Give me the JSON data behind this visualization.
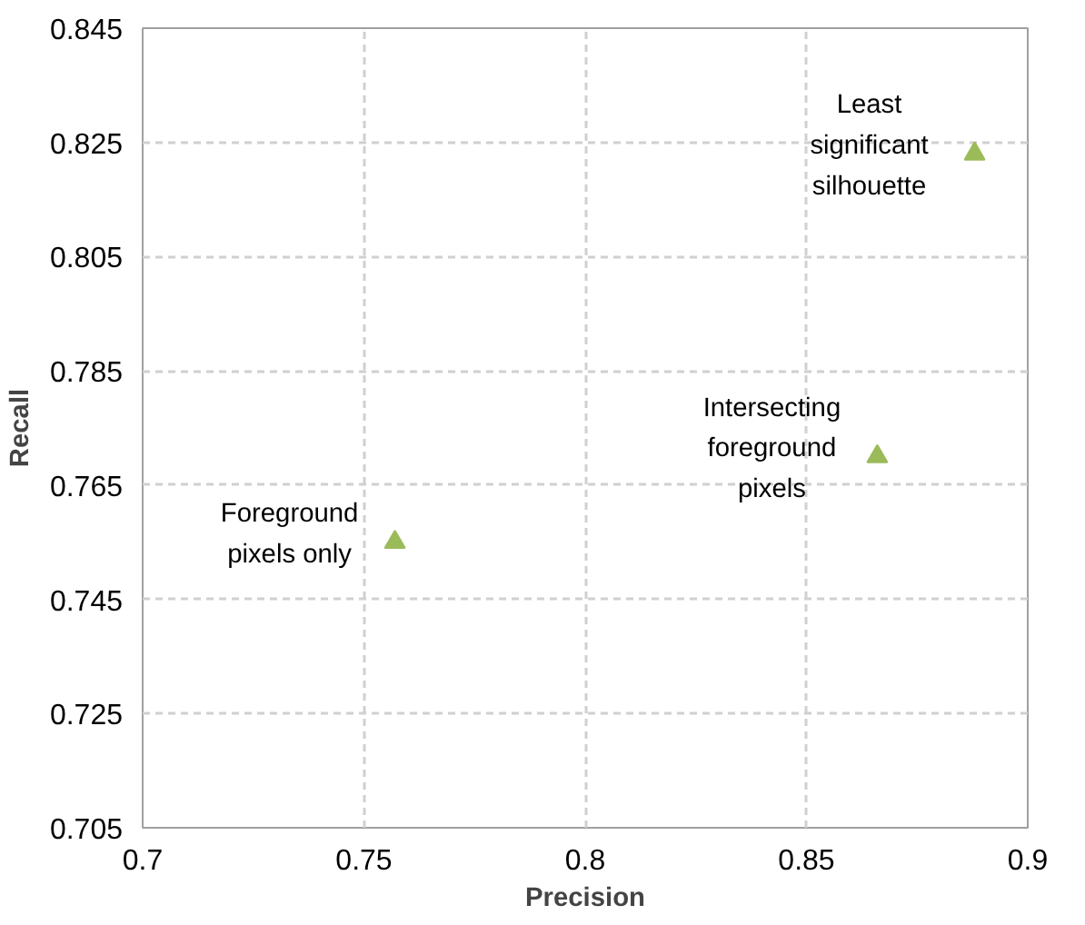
{
  "chart_data": {
    "type": "scatter",
    "xlabel": "Precision",
    "ylabel": "Recall",
    "x": [
      0.757,
      0.866,
      0.888
    ],
    "series": [
      {
        "color": "#9bbb59",
        "values": [
          0.755,
          0.77,
          0.823
        ]
      }
    ],
    "xlim": [
      0.7,
      0.9
    ],
    "xticks": [
      0.7,
      0.75,
      0.8,
      0.85,
      0.9
    ],
    "ylim": [
      0.705,
      0.845
    ],
    "yticks": [
      0.705,
      0.725,
      0.745,
      0.765,
      0.785,
      0.805,
      0.825,
      0.845
    ],
    "grid": true,
    "marker": "triangle",
    "annotations": [
      {
        "text": "Foreground\npixels only",
        "x": 0.757,
        "y": 0.755
      },
      {
        "text": "Intersecting\nforeground\npixels",
        "x": 0.866,
        "y": 0.77
      },
      {
        "text": "Least\nsignificant\nsilhouette",
        "x": 0.888,
        "y": 0.823
      }
    ]
  }
}
